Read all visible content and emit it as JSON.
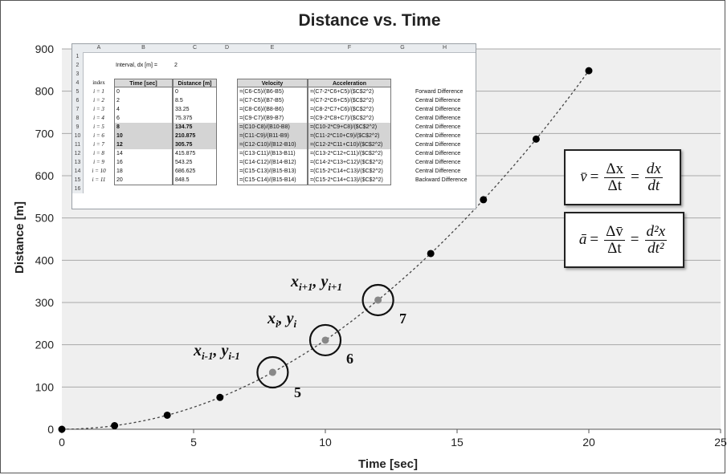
{
  "chart_data": {
    "type": "scatter",
    "title": "Distance vs. Time",
    "xlabel": "Time [sec]",
    "ylabel": "Distance [m]",
    "xlim": [
      0,
      25
    ],
    "ylim": [
      0,
      900
    ],
    "xticks": [
      "0",
      "5",
      "10",
      "15",
      "20",
      "25"
    ],
    "yticks": [
      "0",
      "100",
      "200",
      "300",
      "400",
      "500",
      "600",
      "700",
      "800",
      "900"
    ],
    "grid": "horizontal",
    "series": [
      {
        "x": [
          0,
          2,
          4,
          6,
          8,
          10,
          12,
          14,
          16,
          18,
          20
        ],
        "y": [
          0,
          8.5,
          33.25,
          75.375,
          134.75,
          210.875,
          305.75,
          415.875,
          543.25,
          686.625,
          848.5
        ],
        "color": "#000000",
        "line": "dotted"
      }
    ],
    "highlighted_points": [
      {
        "x": 8,
        "y": 134.75,
        "label": "5"
      },
      {
        "x": 10,
        "y": 210.875,
        "label": "6"
      },
      {
        "x": 12,
        "y": 305.75,
        "label": "7"
      }
    ]
  },
  "point_labels": {
    "prev": {
      "x": "x",
      "xsub": "i-1",
      "comma": ",",
      "y": "y",
      "ysub": "i-1"
    },
    "curr": {
      "x": "x",
      "xsub": "i",
      "comma": ",",
      "y": "y",
      "ysub": "i"
    },
    "next": {
      "x": "x",
      "xsub": "i+1",
      "comma": ",",
      "y": "y",
      "ysub": "i+1"
    }
  },
  "formulas": {
    "velocity": {
      "lhs": "v̄",
      "eq": "=",
      "num1": "Δx",
      "den1": "Δt",
      "num2": "dx",
      "den2": "dt"
    },
    "acceleration": {
      "lhs": "ā",
      "eq": "=",
      "num1": "Δv̄",
      "den1": "Δt",
      "num2": "d²x",
      "den2": "dt²"
    }
  },
  "spreadsheet": {
    "col_headers": [
      "A",
      "B",
      "C",
      "D",
      "E",
      "F",
      "G",
      "H"
    ],
    "interval_label": "Interval, dx [m] =",
    "interval_value": "2",
    "headers": {
      "time": "Time [sec]",
      "distance": "Distance [m]",
      "velocity": "Velocity",
      "acceleration": "Acceleration",
      "index": "index"
    },
    "rows": [
      {
        "num": "5",
        "index": "i = 1",
        "time": "0",
        "dist": "0",
        "vel": "=(C6-C5)/(B6-B5)",
        "acc": "=(C7-2*C6+C5)/($C$2^2)",
        "method": "Forward Difference"
      },
      {
        "num": "6",
        "index": "i = 2",
        "time": "2",
        "dist": "8.5",
        "vel": "=(C7-C5)/(B7-B5)",
        "acc": "=(C7-2*C6+C5)/($C$2^2)",
        "method": "Central Difference"
      },
      {
        "num": "7",
        "index": "i = 3",
        "time": "4",
        "dist": "33.25",
        "vel": "=(C8-C6)/(B8-B6)",
        "acc": "=(C8-2*C7+C6)/($C$2^2)",
        "method": "Central Difference"
      },
      {
        "num": "8",
        "index": "i = 4",
        "time": "6",
        "dist": "75.375",
        "vel": "=(C9-C7)/(B9-B7)",
        "acc": "=(C9-2*C8+C7)/($C$2^2)",
        "method": "Central Difference"
      },
      {
        "num": "9",
        "index": "i = 5",
        "time": "8",
        "dist": "134.75",
        "vel": "=(C10-C8)/(B10-B8)",
        "acc": "=(C10-2*C9+C8)/($C$2^2)",
        "method": "Central Difference"
      },
      {
        "num": "10",
        "index": "i = 6",
        "time": "10",
        "dist": "210.875",
        "vel": "=(C11-C9)/(B11-B9)",
        "acc": "=(C11-2*C10+C9)/($C$2^2)",
        "method": "Central Difference"
      },
      {
        "num": "11",
        "index": "i = 7",
        "time": "12",
        "dist": "305.75",
        "vel": "=(C12-C10)/(B12-B10)",
        "acc": "=(C12-2*C11+C10)/($C$2^2)",
        "method": "Central Difference"
      },
      {
        "num": "12",
        "index": "i = 8",
        "time": "14",
        "dist": "415.875",
        "vel": "=(C13-C11)/(B13-B11)",
        "acc": "=(C13-2*C12+C11)/($C$2^2)",
        "method": "Central Difference"
      },
      {
        "num": "13",
        "index": "i = 9",
        "time": "16",
        "dist": "543.25",
        "vel": "=(C14-C12)/(B14-B12)",
        "acc": "=(C14-2*C13+C12)/($C$2^2)",
        "method": "Central Difference"
      },
      {
        "num": "14",
        "index": "i = 10",
        "time": "18",
        "dist": "686.625",
        "vel": "=(C15-C13)/(B15-B13)",
        "acc": "=(C15-2*C14+C13)/($C$2^2)",
        "method": "Central Difference"
      },
      {
        "num": "15",
        "index": "i = 11",
        "time": "20",
        "dist": "848.5",
        "vel": "=(C15-C14)/(B15-B14)",
        "acc": "=(C15-2*C14+C13)/($C$2^2)",
        "method": "Backward Difference"
      }
    ]
  }
}
